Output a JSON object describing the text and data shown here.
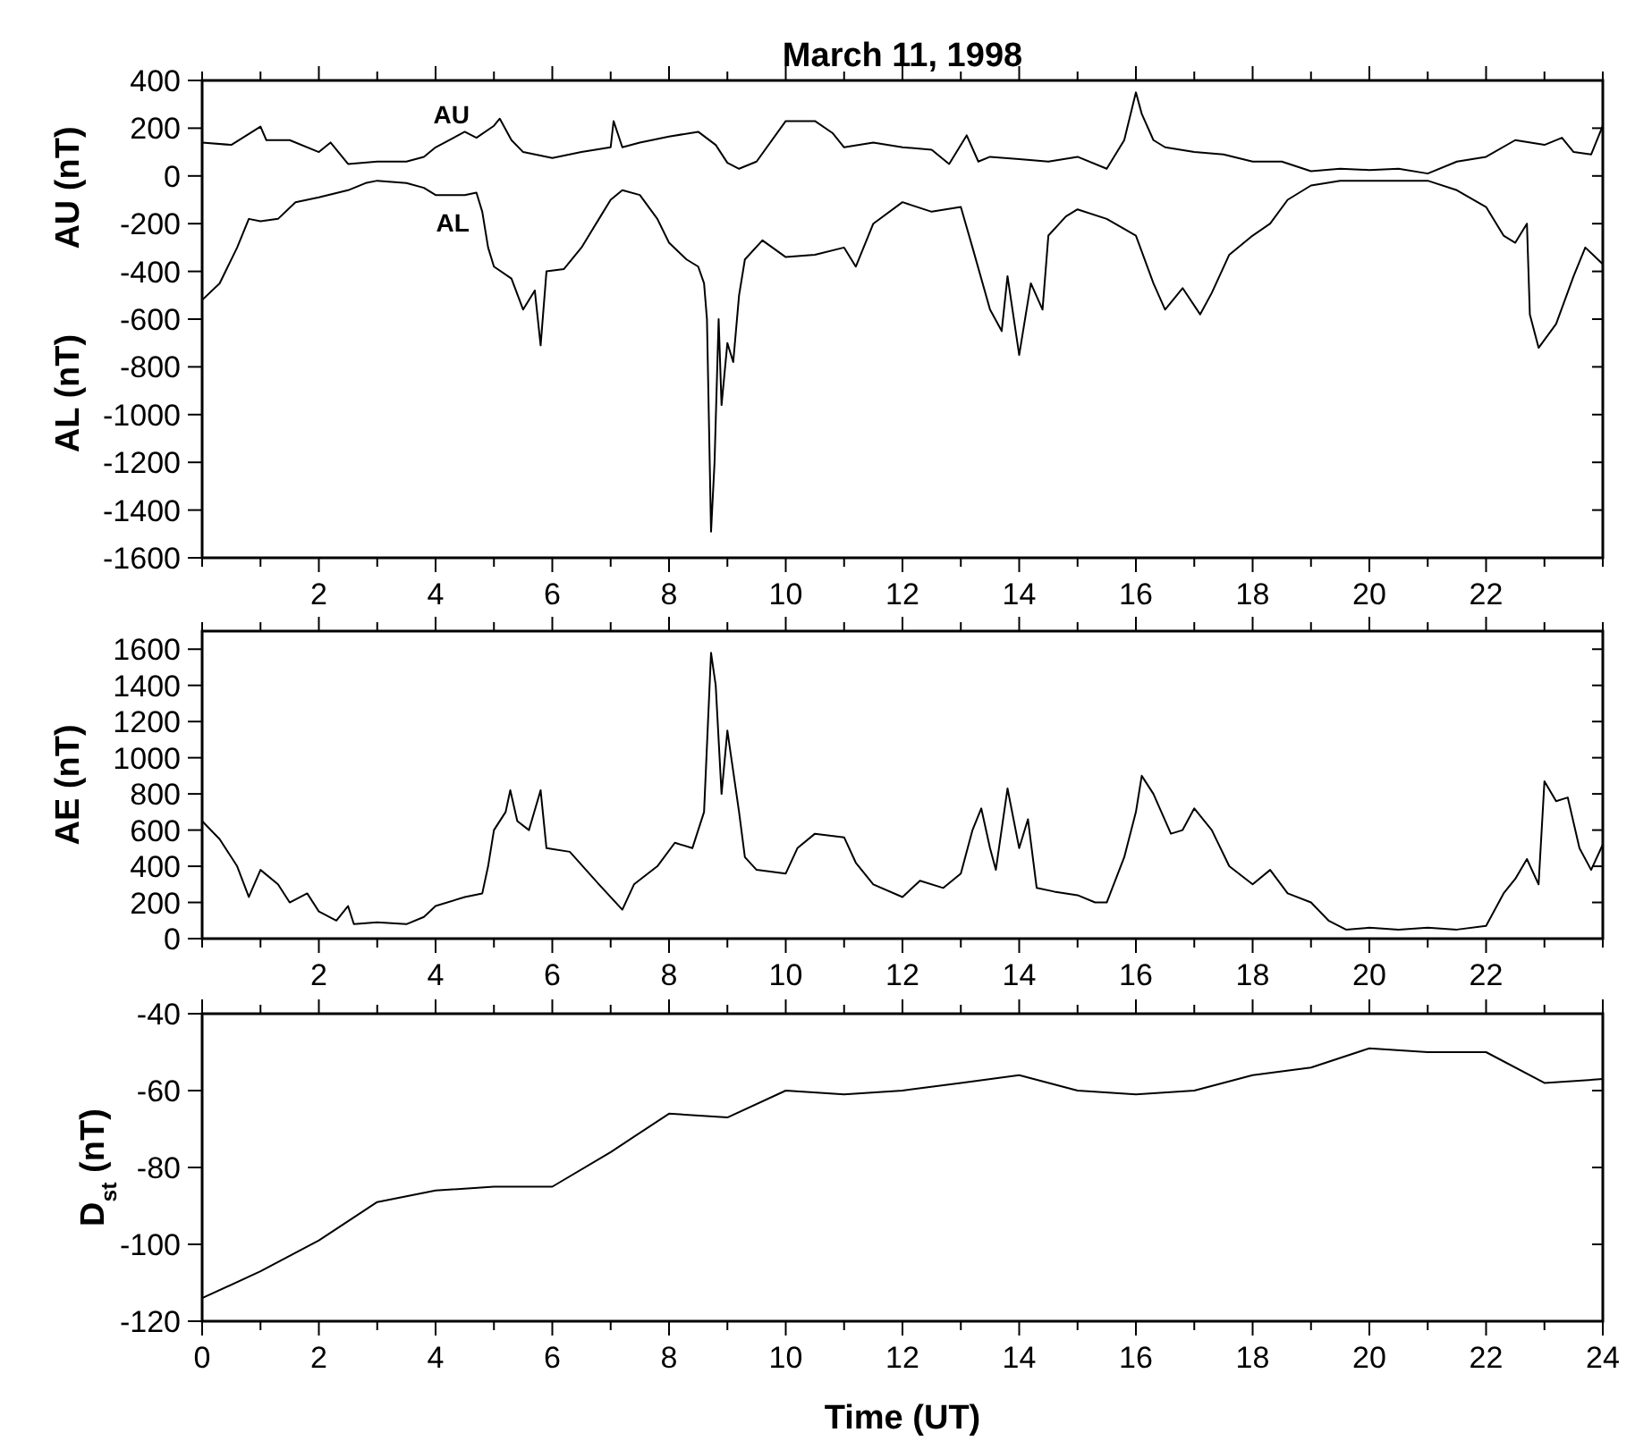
{
  "chart_data": [
    {
      "type": "line",
      "title": "March 11, 1998",
      "ylabel": "AU  (nT)",
      "xlim": [
        0,
        24
      ],
      "ylim": [
        -1600,
        400
      ],
      "xticks": [
        {
          "value": 0,
          "label": null
        },
        {
          "value": 1,
          "label": null
        },
        2,
        {
          "value": 3,
          "label": null
        },
        4,
        {
          "value": 5,
          "label": null
        },
        6,
        {
          "value": 7,
          "label": null
        },
        8,
        {
          "value": 9,
          "label": null
        },
        10,
        {
          "value": 11,
          "label": null
        },
        12,
        {
          "value": 13,
          "label": null
        },
        14,
        {
          "value": 15,
          "label": null
        },
        16,
        {
          "value": 17,
          "label": null
        },
        18,
        {
          "value": 19,
          "label": null
        },
        20,
        {
          "value": 21,
          "label": null
        },
        22,
        {
          "value": 23,
          "label": null
        },
        {
          "value": 24,
          "label": null
        }
      ],
      "yticks": [
        -1600,
        -1400,
        -1200,
        -1000,
        -800,
        -600,
        -400,
        -200,
        0,
        200,
        400
      ],
      "annotations": [
        "AL (nT)"
      ],
      "series": [
        {
          "name": "AU",
          "color": "#000000",
          "x": [
            0,
            0.5,
            1,
            1.1,
            1.5,
            2,
            2.2,
            2.3,
            2.5,
            3,
            3.5,
            3.8,
            4,
            4.5,
            4.7,
            5,
            5.1,
            5.3,
            5.5,
            6,
            6.5,
            7,
            7.05,
            7.2,
            7.5,
            8,
            8.5,
            8.8,
            9,
            9.2,
            9.5,
            10,
            10.5,
            10.8,
            11,
            11.5,
            12,
            12.5,
            12.8,
            13.1,
            13.3,
            13.5,
            14,
            14.5,
            15,
            15.5,
            15.8,
            16,
            16.1,
            16.3,
            16.5,
            17,
            17.5,
            18,
            18.5,
            19,
            19.5,
            20,
            20.5,
            21,
            21.5,
            22,
            22.5,
            23,
            23.3,
            23.5,
            23.8,
            24
          ],
          "values": [
            140,
            130,
            207,
            150,
            150,
            100,
            140,
            110,
            50,
            60,
            60,
            80,
            120,
            185,
            160,
            210,
            240,
            150,
            100,
            75,
            100,
            120,
            230,
            120,
            140,
            165,
            185,
            130,
            55,
            30,
            60,
            230,
            230,
            180,
            120,
            140,
            120,
            110,
            50,
            170,
            60,
            80,
            70,
            60,
            80,
            30,
            150,
            350,
            260,
            150,
            120,
            100,
            90,
            60,
            60,
            20,
            30,
            25,
            30,
            10,
            60,
            80,
            150,
            130,
            160,
            100,
            90,
            210
          ]
        },
        {
          "name": "AL",
          "color": "#000000",
          "x": [
            0,
            0.3,
            0.6,
            0.8,
            1,
            1.3,
            1.6,
            2,
            2.5,
            2.8,
            3,
            3.5,
            3.8,
            4,
            4.5,
            4.7,
            4.8,
            4.9,
            5,
            5.3,
            5.5,
            5.7,
            5.8,
            5.9,
            6.2,
            6.5,
            6.8,
            7,
            7.2,
            7.5,
            7.8,
            8,
            8.3,
            8.5,
            8.6,
            8.65,
            8.72,
            8.78,
            8.85,
            8.9,
            9,
            9.1,
            9.2,
            9.3,
            9.6,
            10,
            10.5,
            11,
            11.2,
            11.5,
            12,
            12.5,
            13,
            13.2,
            13.5,
            13.7,
            13.8,
            14,
            14.2,
            14.4,
            14.5,
            14.8,
            15,
            15.5,
            16,
            16.3,
            16.5,
            16.8,
            17.1,
            17.3,
            17.6,
            18,
            18.3,
            18.6,
            19,
            19.5,
            20,
            21,
            21.5,
            22,
            22.3,
            22.5,
            22.7,
            22.75,
            22.9,
            23.2,
            23.5,
            23.7,
            24
          ],
          "values": [
            -520,
            -450,
            -300,
            -180,
            -190,
            -180,
            -110,
            -90,
            -60,
            -30,
            -20,
            -30,
            -50,
            -80,
            -80,
            -70,
            -150,
            -300,
            -380,
            -430,
            -560,
            -480,
            -710,
            -400,
            -390,
            -300,
            -180,
            -100,
            -60,
            -80,
            -180,
            -280,
            -350,
            -380,
            -450,
            -600,
            -1490,
            -1200,
            -600,
            -960,
            -700,
            -780,
            -500,
            -350,
            -270,
            -340,
            -330,
            -300,
            -380,
            -200,
            -110,
            -150,
            -130,
            -300,
            -560,
            -650,
            -420,
            -750,
            -450,
            -560,
            -250,
            -170,
            -140,
            -180,
            -250,
            -450,
            -560,
            -470,
            -580,
            -490,
            -330,
            -250,
            -200,
            -100,
            -40,
            -20,
            -20,
            -20,
            -60,
            -130,
            -250,
            -280,
            -200,
            -580,
            -720,
            -620,
            -420,
            -300,
            -370
          ]
        }
      ]
    },
    {
      "type": "line",
      "ylabel": "AE  (nT)",
      "xlim": [
        0,
        24
      ],
      "ylim": [
        0,
        1700
      ],
      "xticks": [
        {
          "value": 0,
          "label": null
        },
        {
          "value": 1,
          "label": null
        },
        2,
        {
          "value": 3,
          "label": null
        },
        4,
        {
          "value": 5,
          "label": null
        },
        6,
        {
          "value": 7,
          "label": null
        },
        8,
        {
          "value": 9,
          "label": null
        },
        10,
        {
          "value": 11,
          "label": null
        },
        12,
        {
          "value": 13,
          "label": null
        },
        14,
        {
          "value": 15,
          "label": null
        },
        16,
        {
          "value": 17,
          "label": null
        },
        18,
        {
          "value": 19,
          "label": null
        },
        20,
        {
          "value": 21,
          "label": null
        },
        22,
        {
          "value": 23,
          "label": null
        },
        {
          "value": 24,
          "label": null
        }
      ],
      "yticks": [
        0,
        200,
        400,
        600,
        800,
        1000,
        1200,
        1400,
        1600
      ],
      "series": [
        {
          "color": "#000000",
          "x": [
            0,
            0.3,
            0.6,
            0.8,
            1,
            1.3,
            1.5,
            1.8,
            2,
            2.3,
            2.5,
            2.6,
            3,
            3.5,
            3.8,
            4,
            4.5,
            4.8,
            4.9,
            5,
            5.2,
            5.28,
            5.4,
            5.6,
            5.8,
            5.9,
            6.3,
            6.8,
            7.2,
            7.4,
            7.8,
            8.1,
            8.4,
            8.6,
            8.72,
            8.8,
            8.9,
            9,
            9.2,
            9.3,
            9.5,
            10,
            10.2,
            10.5,
            11,
            11.2,
            11.5,
            12,
            12.3,
            12.7,
            13,
            13.2,
            13.35,
            13.5,
            13.6,
            13.8,
            14,
            14.15,
            14.3,
            14.6,
            15,
            15.3,
            15.5,
            15.8,
            16,
            16.1,
            16.3,
            16.6,
            16.8,
            17,
            17.3,
            17.6,
            18,
            18.3,
            18.6,
            19,
            19.3,
            19.6,
            20,
            20.5,
            21,
            21.5,
            22,
            22.3,
            22.5,
            22.7,
            22.9,
            23,
            23.2,
            23.4,
            23.6,
            23.8,
            24
          ],
          "values": [
            650,
            550,
            400,
            230,
            380,
            300,
            200,
            250,
            150,
            100,
            180,
            80,
            90,
            80,
            120,
            180,
            230,
            250,
            400,
            600,
            700,
            820,
            650,
            600,
            820,
            500,
            480,
            300,
            160,
            300,
            400,
            530,
            500,
            700,
            1580,
            1400,
            800,
            1150,
            700,
            450,
            380,
            360,
            500,
            580,
            560,
            420,
            300,
            230,
            320,
            280,
            360,
            600,
            720,
            500,
            380,
            830,
            500,
            660,
            280,
            260,
            240,
            200,
            200,
            450,
            700,
            900,
            800,
            580,
            600,
            720,
            600,
            400,
            300,
            380,
            250,
            200,
            100,
            50,
            60,
            50,
            60,
            50,
            70,
            250,
            330,
            440,
            300,
            870,
            760,
            780,
            500,
            380,
            520
          ]
        }
      ]
    },
    {
      "type": "line",
      "ylabel": "D$_{st}$ (nT)",
      "xlabel": "Time (UT)",
      "xlim": [
        0,
        24
      ],
      "ylim": [
        -120,
        -40
      ],
      "xticks": [
        0,
        {
          "value": 1,
          "label": null
        },
        2,
        {
          "value": 3,
          "label": null
        },
        4,
        {
          "value": 5,
          "label": null
        },
        6,
        {
          "value": 7,
          "label": null
        },
        8,
        {
          "value": 9,
          "label": null
        },
        10,
        {
          "value": 11,
          "label": null
        },
        12,
        {
          "value": 13,
          "label": null
        },
        14,
        {
          "value": 15,
          "label": null
        },
        16,
        {
          "value": 17,
          "label": null
        },
        18,
        {
          "value": 19,
          "label": null
        },
        20,
        {
          "value": 21,
          "label": null
        },
        22,
        {
          "value": 23,
          "label": null
        },
        24
      ],
      "yticks": [
        -120,
        -100,
        -80,
        -60,
        -40
      ],
      "series": [
        {
          "color": "#000000",
          "x": [
            0,
            1,
            2,
            3,
            4,
            5,
            6,
            7,
            8,
            9,
            10,
            11,
            12,
            13,
            14,
            15,
            16,
            17,
            18,
            19,
            20,
            21,
            22,
            23,
            24
          ],
          "values": [
            -114,
            -107,
            -99,
            -89,
            -86,
            -85,
            -85,
            -76,
            -66,
            -67,
            -60,
            -61,
            -60,
            -58,
            -56,
            -60,
            -61,
            -60,
            -56,
            -54,
            -49,
            -50,
            -50,
            -58,
            -57
          ]
        }
      ]
    }
  ]
}
